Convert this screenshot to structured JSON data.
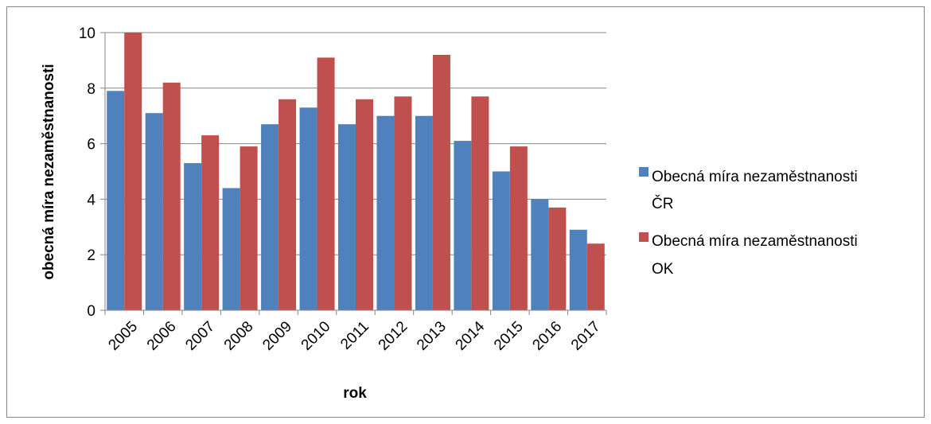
{
  "chart_data": {
    "type": "bar",
    "title": "",
    "xlabel": "rok",
    "ylabel": "obecná míra nezaměstnanosti",
    "categories": [
      "2005",
      "2006",
      "2007",
      "2008",
      "2009",
      "2010",
      "2011",
      "2012",
      "2013",
      "2014",
      "2015",
      "2016",
      "2017"
    ],
    "y_ticks": [
      "0",
      "2",
      "4",
      "6",
      "8",
      "10"
    ],
    "ylim": [
      0,
      10
    ],
    "grid": true,
    "legend_position": "right",
    "series": [
      {
        "name_lines": [
          "Obecná míra nezaměstnanosti",
          "ČR"
        ],
        "color": "#4F81BD",
        "values": [
          7.9,
          7.1,
          5.3,
          4.4,
          6.7,
          7.3,
          6.7,
          7.0,
          7.0,
          6.1,
          5.0,
          4.0,
          2.9
        ]
      },
      {
        "name_lines": [
          "Obecná míra nezaměstnanosti",
          "OK"
        ],
        "color": "#C0504D",
        "values": [
          10.0,
          8.2,
          6.3,
          5.9,
          7.6,
          9.1,
          7.6,
          7.7,
          9.2,
          7.7,
          5.9,
          3.7,
          2.4
        ]
      }
    ]
  }
}
